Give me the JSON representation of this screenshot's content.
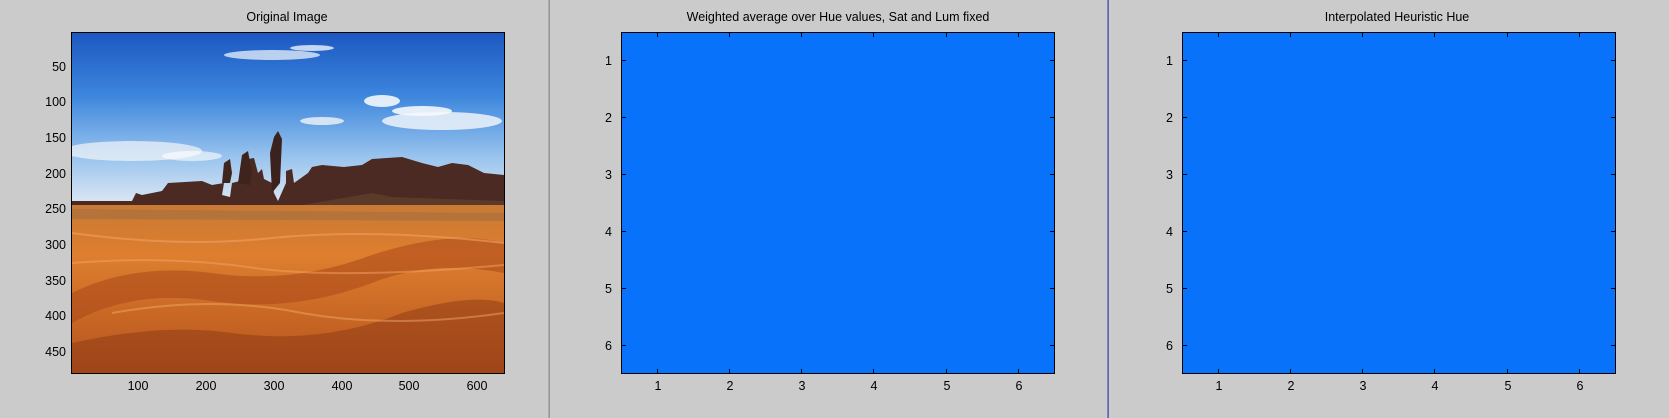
{
  "figures": [
    {
      "title": "Original Image",
      "yticks": [
        "50",
        "100",
        "150",
        "200",
        "250",
        "300",
        "350",
        "400",
        "450"
      ],
      "xticks": [
        "100",
        "200",
        "300",
        "400",
        "500",
        "600"
      ]
    },
    {
      "title": "Weighted average over Hue values, Sat and Lum fixed",
      "yticks": [
        "1",
        "2",
        "3",
        "4",
        "5",
        "6"
      ],
      "xticks": [
        "1",
        "2",
        "3",
        "4",
        "5",
        "6"
      ],
      "fill_color": "#0872fb"
    },
    {
      "title": "Interpolated Heuristic Hue",
      "yticks": [
        "1",
        "2",
        "3",
        "4",
        "5",
        "6"
      ],
      "xticks": [
        "1",
        "2",
        "3",
        "4",
        "5",
        "6"
      ],
      "fill_color": "#0872fb"
    }
  ],
  "image_description": "desert landscape with sand dunes, buttes and blue sky"
}
